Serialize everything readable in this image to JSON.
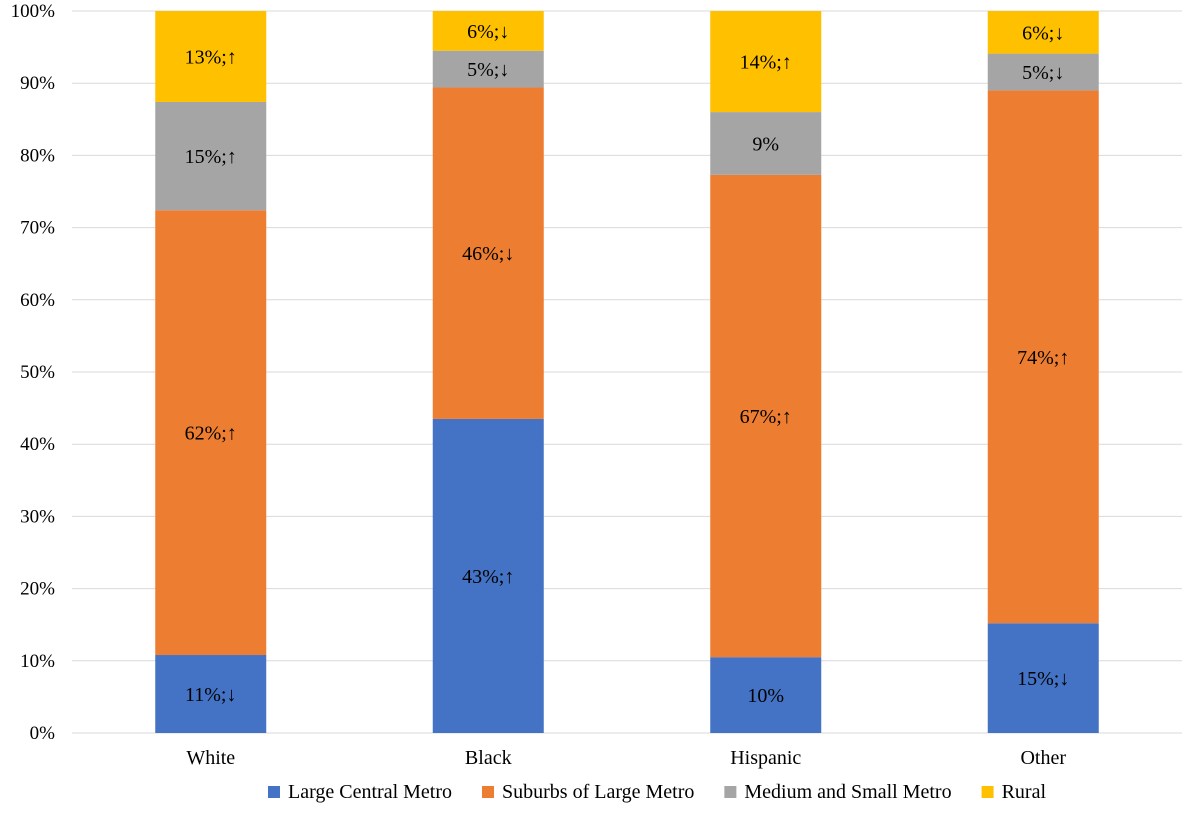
{
  "chart_data": {
    "type": "bar",
    "stacked": true,
    "percent": true,
    "title": "",
    "xlabel": "",
    "ylabel": "",
    "ylim": [
      0,
      100
    ],
    "y_ticks": [
      0,
      10,
      20,
      30,
      40,
      50,
      60,
      70,
      80,
      90,
      100
    ],
    "y_tick_labels": [
      "0%",
      "10%",
      "20%",
      "30%",
      "40%",
      "50%",
      "60%",
      "70%",
      "80%",
      "90%",
      "100%"
    ],
    "grid": true,
    "legend_position": "bottom",
    "categories": [
      "White",
      "Black",
      "Hispanic",
      "Other"
    ],
    "series": [
      {
        "name": "Large Central Metro",
        "color": "#4472C4",
        "values": [
          10.8,
          43.5,
          10.5,
          15.2
        ],
        "labels": [
          "11%;↓",
          "43%;↑",
          "10%",
          "15%;↓"
        ]
      },
      {
        "name": "Suburbs of Large Metro",
        "color": "#ED7D31",
        "values": [
          61.6,
          45.9,
          66.8,
          73.8
        ],
        "labels": [
          "62%;↑",
          "46%;↓",
          "67%;↑",
          "74%;↑"
        ]
      },
      {
        "name": "Medium and Small Metro",
        "color": "#A5A5A5",
        "values": [
          15.0,
          5.1,
          8.7,
          5.1
        ],
        "labels": [
          "15%;↑",
          "5%;↓",
          "9%",
          "5%;↓"
        ]
      },
      {
        "name": "Rural",
        "color": "#FFC000",
        "values": [
          12.6,
          5.5,
          14.0,
          5.9
        ],
        "labels": [
          "13%;↑",
          "6%;↓",
          "14%;↑",
          "6%;↓"
        ]
      }
    ]
  }
}
